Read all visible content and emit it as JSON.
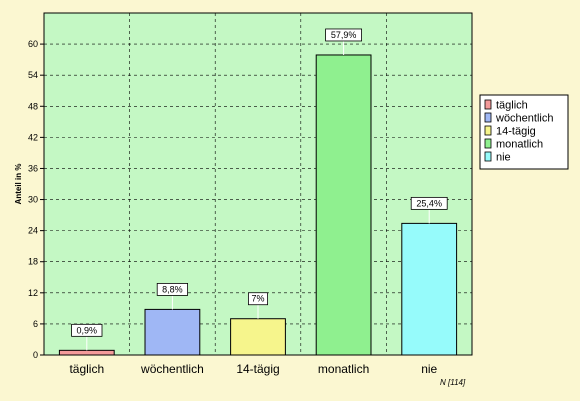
{
  "chart_data": {
    "type": "bar",
    "categories": [
      "täglich",
      "wöchentlich",
      "14-tägig",
      "monatlich",
      "nie"
    ],
    "values": [
      0.9,
      8.8,
      7,
      57.9,
      25.4
    ],
    "data_labels": [
      "0,9%",
      "8,8%",
      "7%",
      "57,9%",
      "25,4%"
    ],
    "colors": [
      "#f39a9a",
      "#9fb7f5",
      "#f6f58c",
      "#8ff08f",
      "#96fbfb"
    ],
    "ylabel": "Anteil in %",
    "ylim": [
      0,
      66
    ],
    "yticks": [
      0,
      6,
      12,
      18,
      24,
      30,
      36,
      42,
      48,
      54,
      60
    ],
    "grid": true,
    "legend": [
      "täglich",
      "wöchentlich",
      "14-tägig",
      "monatlich",
      "nie"
    ],
    "legend_position": "right",
    "note": "N [114]",
    "plot_background": "#c4f8c4"
  }
}
